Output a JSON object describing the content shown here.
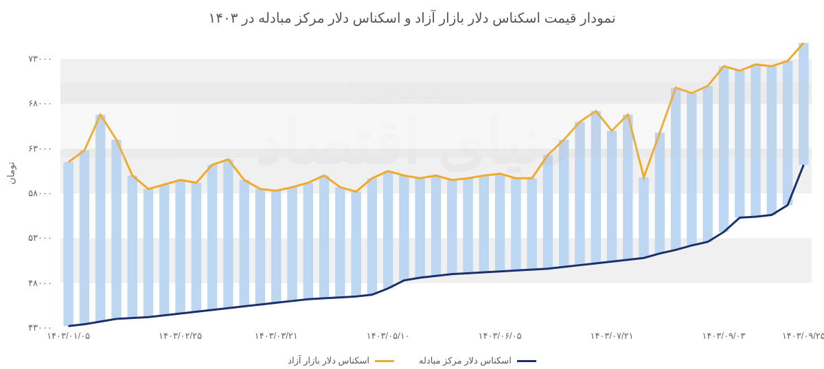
{
  "chart": {
    "title": "نمودار قیمت اسکناس دلار بازار آزاد و اسکناس دلار مرکز مبادله در ۱۴۰۳",
    "y_title": "تومان",
    "ylim": [
      43000,
      75000
    ],
    "ytick_step": 5000,
    "yticks": [
      {
        "v": 43000,
        "label": "۴۳۰۰۰"
      },
      {
        "v": 48000,
        "label": "۴۸۰۰۰"
      },
      {
        "v": 53000,
        "label": "۵۳۰۰۰"
      },
      {
        "v": 58000,
        "label": "۵۸۰۰۰"
      },
      {
        "v": 63000,
        "label": "۶۳۰۰۰"
      },
      {
        "v": 68000,
        "label": "۶۸۰۰۰"
      },
      {
        "v": 73000,
        "label": "۷۳۰۰۰"
      }
    ],
    "grid_band_color": "#f0f0f0",
    "background_color": "#ffffff",
    "bar_color": "#b9d4f0",
    "series": {
      "free": {
        "label": "اسکناس دلار بازار آزاد",
        "color": "#f0a929",
        "values": [
          61500,
          62800,
          66800,
          64000,
          60000,
          58500,
          59000,
          59500,
          59200,
          61200,
          61800,
          59500,
          58500,
          58300,
          58700,
          59200,
          60000,
          58700,
          58200,
          59700,
          60500,
          60000,
          59700,
          60000,
          59500,
          59700,
          60000,
          60200,
          59700,
          59700,
          62300,
          64000,
          66000,
          67200,
          65000,
          66800,
          59800,
          64800,
          69800,
          69200,
          70000,
          72200,
          71700,
          72400,
          72200,
          72800,
          74800
        ]
      },
      "exchange": {
        "label": "اسکناس دلار مرکز مبادله",
        "color": "#1a2f6b",
        "values": [
          43200,
          43400,
          43700,
          44000,
          44100,
          44200,
          44400,
          44600,
          44800,
          45000,
          45200,
          45400,
          45600,
          45800,
          46000,
          46200,
          46300,
          46400,
          46500,
          46700,
          47400,
          48300,
          48600,
          48800,
          49000,
          49100,
          49200,
          49300,
          49400,
          49500,
          49600,
          49800,
          50000,
          50200,
          50400,
          50600,
          50800,
          51300,
          51700,
          52200,
          52600,
          53700,
          55300,
          55400,
          55600,
          56700,
          61200
        ]
      }
    },
    "xticks": [
      {
        "i": 0,
        "label": "۱۴۰۳/۰۱/۰۵"
      },
      {
        "i": 7,
        "label": "۱۴۰۳/۰۲/۲۵"
      },
      {
        "i": 13,
        "label": "۱۴۰۳/۰۳/۲۱"
      },
      {
        "i": 20,
        "label": "۱۴۰۳/۰۵/۱۰"
      },
      {
        "i": 27,
        "label": "۱۴۰۳/۰۶/۰۵"
      },
      {
        "i": 34,
        "label": "۱۴۰۳/۰۷/۲۱"
      },
      {
        "i": 41,
        "label": "۱۴۰۳/۰۹/۰۳"
      },
      {
        "i": 46,
        "label": "۱۴۰۳/۰۹/۲۵"
      }
    ],
    "n": 47,
    "bar_width_ratio": 0.62,
    "title_fontsize": 20,
    "tick_fontsize": 13
  },
  "legend": {
    "items": [
      {
        "label": "اسکناس دلار مرکز مبادله",
        "color": "#1a2f6b"
      },
      {
        "label": "اسکناس دلار بازار آزاد",
        "color": "#f0a929"
      }
    ]
  },
  "watermark": {
    "main": "دنیای اقتصاد",
    "sub": "روزنامه صبح ایران"
  }
}
